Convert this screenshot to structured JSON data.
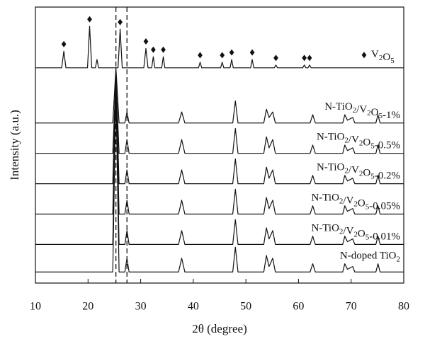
{
  "chart_data": {
    "type": "line",
    "x_label": "2θ (degree)",
    "y_label": "Intensity (a.u.)",
    "xlim": [
      10,
      80
    ],
    "xticks": [
      10,
      20,
      30,
      40,
      50,
      60,
      70,
      80
    ],
    "ylim": [
      0,
      100
    ],
    "color": "#111111",
    "reference_lines": [
      25.3,
      27.4
    ],
    "diamond_x": [
      15.4,
      20.3,
      26.1,
      31.0,
      32.4,
      34.3,
      41.3,
      45.5,
      47.3,
      51.2,
      55.7,
      61.1,
      62.1
    ],
    "series": [
      {
        "name": "N-doped TiO2",
        "x": [
          10,
          24.7,
          25.3,
          25.9,
          27.0,
          27.4,
          27.8,
          37.2,
          37.8,
          38.4,
          47.5,
          48.0,
          48.5,
          53.4,
          53.9,
          54.4,
          55.1,
          55.6,
          62.2,
          62.7,
          63.2,
          68.4,
          68.8,
          69.3,
          70.3,
          70.7,
          74.7,
          75.1,
          75.5,
          80
        ],
        "values": [
          4,
          4,
          70,
          4,
          4,
          9,
          4,
          4,
          9,
          4,
          4,
          13,
          4,
          4,
          10,
          6,
          9,
          4,
          4,
          7,
          4,
          4,
          7,
          5,
          6,
          4,
          4,
          7,
          4,
          4
        ]
      },
      {
        "name": "N-TiO2/V2O5-0.01%",
        "x": [
          10,
          24.7,
          25.3,
          25.9,
          27.0,
          27.4,
          27.8,
          37.2,
          37.8,
          38.4,
          47.5,
          48.0,
          48.5,
          53.4,
          53.9,
          54.4,
          55.1,
          55.6,
          62.2,
          62.7,
          63.2,
          68.4,
          68.8,
          69.3,
          70.3,
          70.7,
          74.7,
          75.1,
          75.5,
          80
        ],
        "values": [
          14,
          14,
          72,
          14,
          14,
          19,
          14,
          14,
          19,
          14,
          14,
          23,
          14,
          14,
          20,
          16,
          19,
          14,
          14,
          17,
          14,
          14,
          17,
          15,
          16,
          14,
          14,
          17,
          14,
          14
        ]
      },
      {
        "name": "N-TiO2/V2O5-0.05%",
        "x": [
          10,
          24.7,
          25.3,
          25.9,
          27.0,
          27.4,
          27.8,
          37.2,
          37.8,
          38.4,
          47.5,
          48.0,
          48.5,
          53.4,
          53.9,
          54.4,
          55.1,
          55.6,
          62.2,
          62.7,
          63.2,
          68.4,
          68.8,
          69.3,
          70.3,
          70.7,
          74.7,
          75.1,
          75.5,
          80
        ],
        "values": [
          25,
          25,
          73,
          25,
          25,
          30,
          25,
          25,
          30,
          25,
          25,
          34,
          25,
          25,
          31,
          27,
          30,
          25,
          25,
          28,
          25,
          25,
          28,
          26,
          27,
          25,
          25,
          28,
          25,
          25
        ]
      },
      {
        "name": "N-TiO2/V2O5-0.2%",
        "x": [
          10,
          24.7,
          25.3,
          25.9,
          27.0,
          27.4,
          27.8,
          37.2,
          37.8,
          38.4,
          47.5,
          48.0,
          48.5,
          53.4,
          53.9,
          54.4,
          55.1,
          55.6,
          62.2,
          62.7,
          63.2,
          68.4,
          68.8,
          69.3,
          70.3,
          70.7,
          74.7,
          75.1,
          75.5,
          80
        ],
        "values": [
          36,
          36,
          74,
          36,
          36,
          41,
          36,
          36,
          41,
          36,
          36,
          45,
          36,
          36,
          42,
          38,
          41,
          36,
          36,
          39,
          36,
          36,
          39,
          37,
          38,
          36,
          36,
          39,
          36,
          36
        ]
      },
      {
        "name": "N-TiO2/V2O5-0.5%",
        "x": [
          10,
          24.7,
          25.3,
          25.9,
          27.0,
          27.4,
          27.8,
          37.2,
          37.8,
          38.4,
          47.5,
          48.0,
          48.5,
          53.4,
          53.9,
          54.4,
          55.1,
          55.6,
          62.2,
          62.7,
          63.2,
          68.4,
          68.8,
          69.3,
          70.3,
          70.7,
          74.7,
          75.1,
          75.5,
          80
        ],
        "values": [
          47,
          47,
          75,
          47,
          47,
          52,
          47,
          47,
          52,
          47,
          47,
          56,
          47,
          47,
          53,
          49,
          52,
          47,
          47,
          50,
          47,
          47,
          50,
          48,
          49,
          47,
          47,
          50,
          47,
          47
        ]
      },
      {
        "name": "N-TiO2/V2O5-1%",
        "x": [
          10,
          24.7,
          25.3,
          25.9,
          27.0,
          27.4,
          27.8,
          37.2,
          37.8,
          38.4,
          47.5,
          48.0,
          48.5,
          53.4,
          53.9,
          54.4,
          55.1,
          55.6,
          62.2,
          62.7,
          63.2,
          68.4,
          68.8,
          69.3,
          70.3,
          70.7,
          74.7,
          75.1,
          75.5,
          80
        ],
        "values": [
          58,
          58,
          78,
          58,
          58,
          62,
          58,
          58,
          62,
          58,
          58,
          66,
          58,
          58,
          63,
          60,
          62,
          58,
          58,
          61,
          58,
          58,
          61,
          59,
          60,
          58,
          58,
          61,
          58,
          58
        ]
      },
      {
        "name": "V2O5",
        "x": [
          10,
          15.0,
          15.4,
          15.8,
          19.9,
          20.3,
          20.7,
          21.4,
          21.7,
          22.0,
          25.7,
          26.1,
          26.5,
          30.6,
          31.0,
          31.4,
          32.1,
          32.4,
          32.7,
          34.0,
          34.3,
          34.6,
          41.0,
          41.3,
          41.6,
          45.2,
          45.5,
          45.8,
          47.0,
          47.3,
          47.6,
          50.9,
          51.2,
          51.5,
          55.4,
          55.7,
          56.0,
          60.8,
          61.1,
          61.4,
          61.8,
          62.1,
          62.4,
          80
        ],
        "values": [
          78,
          78,
          84,
          78,
          78,
          93,
          78,
          78,
          81,
          78,
          78,
          92,
          78,
          78,
          85,
          78,
          78,
          82,
          78,
          78,
          82,
          78,
          78,
          80,
          78,
          78,
          80,
          78,
          78,
          81,
          78,
          78,
          81,
          78,
          78,
          79,
          78,
          78,
          79,
          78,
          78,
          79,
          78,
          78
        ]
      }
    ]
  }
}
